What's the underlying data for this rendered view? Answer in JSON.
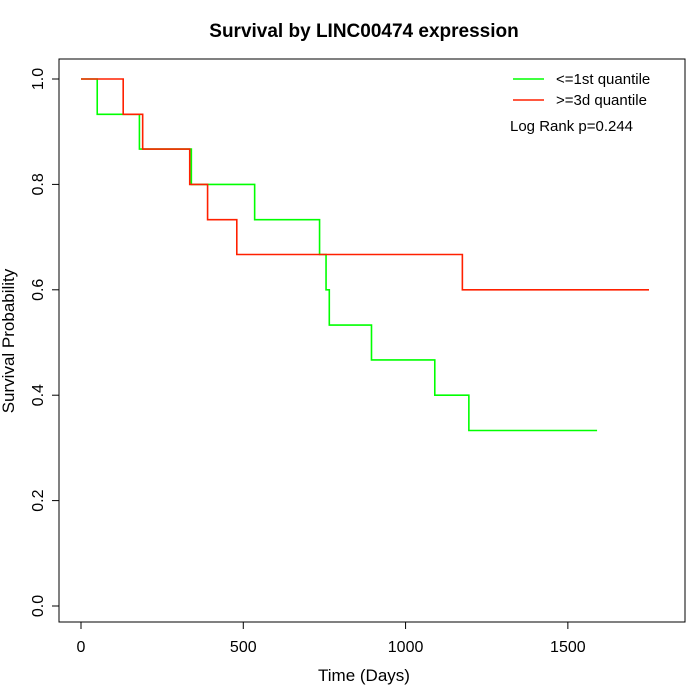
{
  "chart_data": {
    "type": "line",
    "title": "Survival by LINC00474 expression",
    "xlabel": "Time (Days)",
    "ylabel": "Survival Probability",
    "xlim": [
      0,
      1750
    ],
    "ylim": [
      0,
      1.0
    ],
    "xticks": [
      0,
      500,
      1000,
      1500
    ],
    "xtick_labels": [
      "0",
      "500",
      "1000",
      "1500"
    ],
    "yticks": [
      0.0,
      0.2,
      0.4,
      0.6,
      0.8,
      1.0
    ],
    "ytick_labels": [
      "0.0",
      "0.2",
      "0.4",
      "0.6",
      "0.8",
      "1.0"
    ],
    "grid": false,
    "legend_position": "top-right",
    "annotation": "Log Rank p=0.244",
    "series": [
      {
        "name": "<=1st quantile",
        "color": "#00ff00",
        "step": true,
        "x": [
          0,
          50,
          180,
          340,
          535,
          735,
          755,
          765,
          895,
          1090,
          1195,
          1590
        ],
        "y": [
          1.0,
          0.933,
          0.867,
          0.8,
          0.733,
          0.667,
          0.6,
          0.533,
          0.467,
          0.4,
          0.333,
          0.333
        ]
      },
      {
        "name": ">=3d quantile",
        "color": "#ff2000",
        "step": true,
        "x": [
          0,
          130,
          190,
          335,
          390,
          480,
          1175,
          1750
        ],
        "y": [
          1.0,
          0.933,
          0.867,
          0.8,
          0.733,
          0.667,
          0.6,
          0.6
        ]
      }
    ]
  }
}
